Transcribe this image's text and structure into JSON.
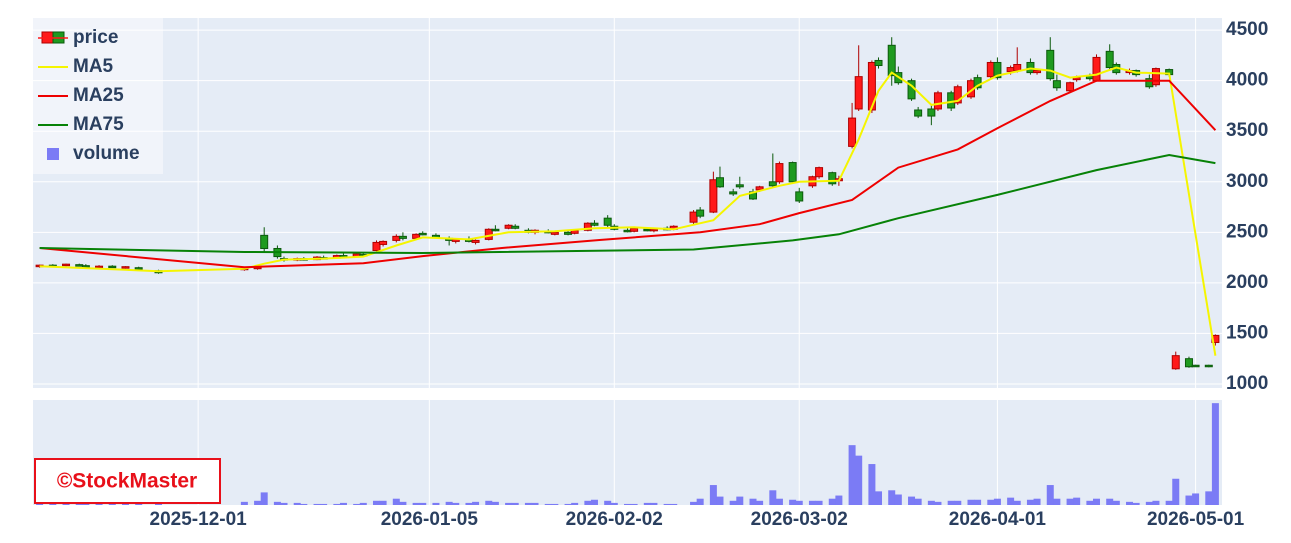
{
  "chart_data": {
    "type": "candlestick",
    "name": "price",
    "increasing_color": "#ff1a1a",
    "decreasing_color": "#1f9a1f",
    "x": [
      "2025-11-07",
      "2025-11-09",
      "2025-11-11",
      "2025-11-13",
      "2025-11-14",
      "2025-11-16",
      "2025-11-18",
      "2025-11-20",
      "2025-11-22",
      "2025-11-25",
      "2025-12-08",
      "2025-12-10",
      "2025-12-11",
      "2025-12-13",
      "2025-12-14",
      "2025-12-16",
      "2025-12-17",
      "2025-12-19",
      "2025-12-20",
      "2025-12-22",
      "2025-12-23",
      "2025-12-25",
      "2025-12-26",
      "2025-12-28",
      "2025-12-29",
      "2025-12-31",
      "2026-01-01",
      "2026-01-03",
      "2026-01-04",
      "2026-01-06",
      "2026-01-08",
      "2026-01-09",
      "2026-01-11",
      "2026-01-12",
      "2026-01-14",
      "2026-01-15",
      "2026-01-17",
      "2026-01-18",
      "2026-01-20",
      "2026-01-21",
      "2026-01-23",
      "2026-01-24",
      "2026-01-26",
      "2026-01-27",
      "2026-01-29",
      "2026-01-30",
      "2026-02-01",
      "2026-02-02",
      "2026-02-04",
      "2026-02-05",
      "2026-02-07",
      "2026-02-08",
      "2026-02-10",
      "2026-02-11",
      "2026-02-14",
      "2026-02-15",
      "2026-02-17",
      "2026-02-18",
      "2026-02-20",
      "2026-02-21",
      "2026-02-23",
      "2026-02-24",
      "2026-02-26",
      "2026-02-27",
      "2026-03-01",
      "2026-03-02",
      "2026-03-04",
      "2026-03-05",
      "2026-03-07",
      "2026-03-08",
      "2026-03-10",
      "2026-03-11",
      "2026-03-13",
      "2026-03-14",
      "2026-03-16",
      "2026-03-17",
      "2026-03-19",
      "2026-03-20",
      "2026-03-22",
      "2026-03-23",
      "2026-03-25",
      "2026-03-26",
      "2026-03-28",
      "2026-03-29",
      "2026-03-31",
      "2026-04-01",
      "2026-04-03",
      "2026-04-04",
      "2026-04-06",
      "2026-04-07",
      "2026-04-09",
      "2026-04-10",
      "2026-04-12",
      "2026-04-13",
      "2026-04-15",
      "2026-04-16",
      "2026-04-18",
      "2026-04-19",
      "2026-04-21",
      "2026-04-22",
      "2026-04-24",
      "2026-04-25",
      "2026-04-27",
      "2026-04-28",
      "2026-04-30",
      "2026-05-01",
      "2026-05-03",
      "2026-05-04"
    ],
    "open": [
      2160,
      2175,
      2170,
      2180,
      2170,
      2160,
      2165,
      2150,
      2150,
      2120,
      2130,
      2140,
      2470,
      2340,
      2240,
      2225,
      2240,
      2230,
      2250,
      2245,
      2270,
      2260,
      2280,
      2320,
      2380,
      2420,
      2460,
      2440,
      2490,
      2470,
      2440,
      2410,
      2430,
      2400,
      2430,
      2530,
      2540,
      2560,
      2520,
      2500,
      2510,
      2480,
      2500,
      2490,
      2520,
      2590,
      2640,
      2560,
      2520,
      2510,
      2530,
      2520,
      2540,
      2530,
      2600,
      2720,
      2700,
      3040,
      2900,
      2970,
      2900,
      2920,
      3000,
      3000,
      3190,
      2900,
      2960,
      3050,
      3090,
      3010,
      3350,
      3720,
      3710,
      4200,
      4350,
      4080,
      4000,
      3710,
      3720,
      3720,
      3880,
      3780,
      3840,
      4030,
      4040,
      4180,
      4090,
      4100,
      4180,
      4080,
      4300,
      4000,
      3900,
      4010,
      4050,
      4000,
      4290,
      4160,
      4080,
      4100,
      4020,
      3960,
      4110,
      1150,
      1250,
      1185,
      1185,
      1410
    ],
    "high": [
      2180,
      2185,
      2190,
      2190,
      2185,
      2175,
      2175,
      2165,
      2160,
      2130,
      2150,
      2165,
      2550,
      2370,
      2260,
      2250,
      2255,
      2265,
      2270,
      2280,
      2290,
      2290,
      2300,
      2420,
      2420,
      2480,
      2500,
      2490,
      2510,
      2490,
      2460,
      2440,
      2460,
      2430,
      2540,
      2570,
      2580,
      2580,
      2540,
      2530,
      2530,
      2510,
      2520,
      2530,
      2600,
      2620,
      2670,
      2580,
      2540,
      2550,
      2550,
      2540,
      2560,
      2570,
      2720,
      2750,
      3100,
      3150,
      2930,
      3050,
      2930,
      2960,
      3280,
      3200,
      3200,
      2940,
      3060,
      3150,
      3100,
      3060,
      3780,
      4350,
      4200,
      4230,
      4430,
      4140,
      4020,
      3740,
      3760,
      3900,
      3900,
      3960,
      4020,
      4060,
      4200,
      4230,
      4150,
      4330,
      4220,
      4120,
      4430,
      4060,
      3990,
      4050,
      4070,
      4260,
      4360,
      4180,
      4120,
      4110,
      4060,
      4130,
      4120,
      1320,
      1270,
      1190,
      1190,
      1490
    ],
    "low": [
      2150,
      2165,
      2165,
      2165,
      2160,
      2150,
      2150,
      2140,
      2130,
      2090,
      2120,
      2130,
      2300,
      2240,
      2210,
      2215,
      2220,
      2225,
      2235,
      2240,
      2250,
      2255,
      2260,
      2300,
      2360,
      2400,
      2420,
      2430,
      2470,
      2440,
      2370,
      2390,
      2400,
      2380,
      2420,
      2510,
      2530,
      2530,
      2490,
      2480,
      2490,
      2470,
      2470,
      2480,
      2510,
      2560,
      2550,
      2520,
      2500,
      2500,
      2510,
      2500,
      2520,
      2520,
      2580,
      2640,
      2690,
      2940,
      2860,
      2930,
      2820,
      2900,
      2940,
      2980,
      2980,
      2790,
      2940,
      3030,
      2960,
      2960,
      3330,
      3700,
      3680,
      4120,
      3950,
      3960,
      3800,
      3630,
      3560,
      3700,
      3700,
      3760,
      3820,
      3910,
      4020,
      4010,
      4060,
      4080,
      4060,
      4060,
      4000,
      3900,
      3880,
      3990,
      4000,
      3990,
      4100,
      4060,
      4060,
      4040,
      3920,
      3940,
      4040,
      1140,
      1160,
      1170,
      1165,
      1380
    ],
    "close": [
      2175,
      2170,
      2185,
      2170,
      2165,
      2165,
      2155,
      2160,
      2135,
      2100,
      2145,
      2155,
      2340,
      2260,
      2230,
      2240,
      2230,
      2255,
      2245,
      2270,
      2260,
      2285,
      2270,
      2400,
      2410,
      2460,
      2440,
      2480,
      2480,
      2450,
      2420,
      2430,
      2410,
      2420,
      2530,
      2520,
      2570,
      2540,
      2500,
      2520,
      2500,
      2500,
      2480,
      2520,
      2590,
      2570,
      2570,
      2530,
      2510,
      2540,
      2520,
      2530,
      2530,
      2560,
      2700,
      2660,
      3020,
      2950,
      2880,
      2950,
      2830,
      2950,
      2960,
      3180,
      3000,
      2810,
      3050,
      3140,
      2980,
      3030,
      3630,
      4040,
      4180,
      4150,
      4050,
      3980,
      3820,
      3650,
      3650,
      3880,
      3730,
      3940,
      4000,
      3930,
      4180,
      4030,
      4130,
      4160,
      4080,
      4100,
      4020,
      3930,
      3980,
      4030,
      4020,
      4230,
      4130,
      4080,
      4100,
      4060,
      3940,
      4120,
      4060,
      1280,
      1170,
      1175,
      1175,
      1480
    ],
    "series": [
      {
        "name": "MA5",
        "color": "#f5f500",
        "x": [
          "2025-11-07",
          "2025-11-25",
          "2025-12-08",
          "2025-12-11",
          "2025-12-14",
          "2025-12-20",
          "2025-12-26",
          "2025-12-31",
          "2026-01-04",
          "2026-01-11",
          "2026-01-17",
          "2026-01-24",
          "2026-01-30",
          "2026-02-05",
          "2026-02-11",
          "2026-02-17",
          "2026-02-21",
          "2026-02-27",
          "2026-03-02",
          "2026-03-08",
          "2026-03-11",
          "2026-03-14",
          "2026-03-16",
          "2026-03-19",
          "2026-03-22",
          "2026-03-26",
          "2026-03-29",
          "2026-04-01",
          "2026-04-06",
          "2026-04-09",
          "2026-04-12",
          "2026-04-16",
          "2026-04-19",
          "2026-04-22",
          "2026-04-27",
          "2026-05-04"
        ],
        "values": [
          2165,
          2115,
          2140,
          2190,
          2230,
          2240,
          2260,
          2370,
          2450,
          2430,
          2500,
          2510,
          2540,
          2550,
          2530,
          2620,
          2860,
          2960,
          3000,
          3010,
          3420,
          3900,
          4080,
          3950,
          3760,
          3800,
          3950,
          4050,
          4120,
          4100,
          4030,
          4060,
          4130,
          4080,
          4070,
          1280
        ]
      },
      {
        "name": "MA25",
        "color": "#ee0000",
        "x": [
          "2025-11-07",
          "2025-12-08",
          "2025-12-26",
          "2026-01-04",
          "2026-01-16",
          "2026-01-31",
          "2026-02-15",
          "2026-02-24",
          "2026-03-02",
          "2026-03-10",
          "2026-03-17",
          "2026-03-26",
          "2026-04-01",
          "2026-04-09",
          "2026-04-16",
          "2026-04-27",
          "2026-05-04"
        ],
        "values": [
          2345,
          2155,
          2195,
          2265,
          2345,
          2425,
          2500,
          2580,
          2690,
          2820,
          3140,
          3320,
          3530,
          3800,
          4000,
          4000,
          3510
        ]
      },
      {
        "name": "MA75",
        "color": "#078207",
        "x": [
          "2025-11-07",
          "2025-12-08",
          "2026-01-04",
          "2026-02-14",
          "2026-03-01",
          "2026-03-08",
          "2026-03-17",
          "2026-04-01",
          "2026-04-16",
          "2026-04-27",
          "2026-05-04"
        ],
        "values": [
          2345,
          2305,
          2295,
          2330,
          2420,
          2480,
          2640,
          2870,
          3115,
          3265,
          3185
        ]
      }
    ],
    "volume": {
      "name": "volume",
      "color": "#7b7bf5",
      "ylim": [
        0,
        100
      ],
      "values": [
        1,
        1,
        1,
        1,
        1,
        1,
        1,
        1,
        1,
        1,
        3,
        4,
        12,
        3,
        2,
        2,
        1,
        1,
        1,
        1,
        2,
        1,
        2,
        4,
        4,
        6,
        3,
        2,
        2,
        2,
        3,
        2,
        2,
        3,
        4,
        3,
        2,
        2,
        2,
        2,
        1,
        1,
        1,
        2,
        4,
        5,
        4,
        2,
        1,
        1,
        2,
        2,
        1,
        1,
        3,
        6,
        19,
        8,
        4,
        8,
        6,
        4,
        14,
        6,
        5,
        4,
        4,
        4,
        6,
        9,
        57,
        47,
        39,
        13,
        14,
        10,
        8,
        6,
        4,
        3,
        4,
        4,
        5,
        5,
        5,
        6,
        7,
        4,
        5,
        6,
        19,
        6,
        6,
        7,
        4,
        6,
        6,
        4,
        3,
        2,
        3,
        4,
        4,
        25,
        9,
        11,
        13,
        97
      ]
    },
    "xlim": [
      "2025-11-06",
      "2026-05-05"
    ],
    "xticks": [
      "2025-12-01",
      "2026-01-05",
      "2026-02-02",
      "2026-03-02",
      "2026-04-01",
      "2026-05-01"
    ],
    "ylim": [
      960,
      4620
    ],
    "yticks": [
      1000,
      1500,
      2000,
      2500,
      3000,
      3500,
      4000,
      4500
    ],
    "grid": true,
    "legend": "top-left",
    "watermark": "©StockMaster"
  }
}
